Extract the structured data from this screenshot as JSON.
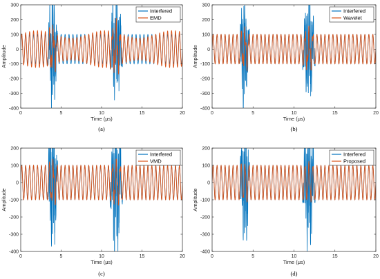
{
  "chart_data": [
    {
      "type": "line",
      "caption": "(a)",
      "xlabel": "Time (μs)",
      "ylabel": "Amplitude",
      "xlim": [
        0,
        20
      ],
      "ylim": [
        -400,
        300
      ],
      "xticks": [
        0,
        5,
        10,
        15,
        20
      ],
      "yticks": [
        -400,
        -300,
        -200,
        -100,
        0,
        100,
        200,
        300
      ],
      "grid": false,
      "legend_position": "top-right",
      "series": [
        {
          "name": "Interfered",
          "color": "#0072BD",
          "description": "~100 amplitude sinusoid with interference bursts near 3-4.5 μs and 11-12.5 μs"
        },
        {
          "name": "EMD",
          "color": "#D95319",
          "description": "denoised sinusoid, residual distortion at bursts"
        }
      ]
    },
    {
      "type": "line",
      "caption": "(b)",
      "xlabel": "Time (μs)",
      "ylabel": "Amplitude",
      "xlim": [
        0,
        20
      ],
      "ylim": [
        -400,
        300
      ],
      "xticks": [
        0,
        5,
        10,
        15,
        20
      ],
      "yticks": [
        -400,
        -300,
        -200,
        -100,
        0,
        100,
        200,
        300
      ],
      "grid": false,
      "legend_position": "top-right",
      "series": [
        {
          "name": "Interfered",
          "color": "#0072BD"
        },
        {
          "name": "Wavelet",
          "color": "#D95319"
        }
      ]
    },
    {
      "type": "line",
      "caption": "(c)",
      "xlabel": "Time (μs)",
      "ylabel": "Amplitude",
      "xlim": [
        0,
        20
      ],
      "ylim": [
        -400,
        200
      ],
      "xticks": [
        0,
        5,
        10,
        15,
        20
      ],
      "yticks": [
        -400,
        -300,
        -200,
        -100,
        0,
        100,
        200
      ],
      "grid": false,
      "legend_position": "top-right",
      "series": [
        {
          "name": "Interfered",
          "color": "#0072BD"
        },
        {
          "name": "VMD",
          "color": "#D95319"
        }
      ]
    },
    {
      "type": "line",
      "caption": "(d)",
      "xlabel": "Time (μs)",
      "ylabel": "Amplitude",
      "xlim": [
        0,
        20
      ],
      "ylim": [
        -400,
        200
      ],
      "xticks": [
        0,
        5,
        10,
        15,
        20
      ],
      "yticks": [
        -400,
        -300,
        -200,
        -100,
        0,
        100,
        200
      ],
      "grid": false,
      "legend_position": "top-right",
      "series": [
        {
          "name": "Interfered",
          "color": "#0072BD"
        },
        {
          "name": "Proposed",
          "color": "#D95319"
        }
      ]
    }
  ]
}
